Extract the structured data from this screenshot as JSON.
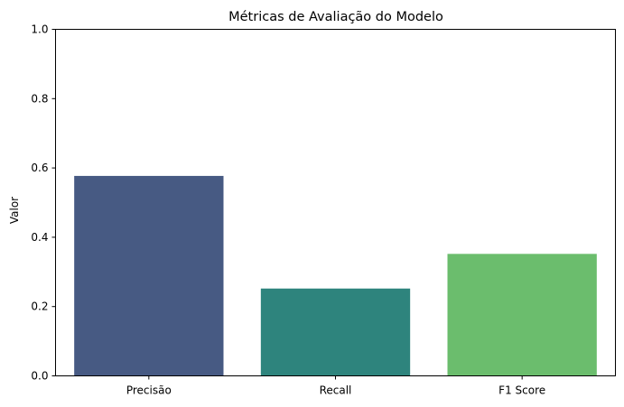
{
  "chart_data": {
    "type": "bar",
    "title": "Métricas de Avaliação do Modelo",
    "xlabel": "",
    "ylabel": "Valor",
    "ylim": [
      0,
      1
    ],
    "yticks": [
      0.0,
      0.2,
      0.4,
      0.6,
      0.8,
      1.0
    ],
    "ytick_labels": [
      "0.0",
      "0.2",
      "0.4",
      "0.6",
      "0.8",
      "1.0"
    ],
    "grid": false,
    "categories": [
      "Precisão",
      "Recall",
      "F1 Score"
    ],
    "values": [
      0.577,
      0.252,
      0.352
    ],
    "colors": [
      "#475a83",
      "#2e847d",
      "#6bbd6d"
    ]
  }
}
